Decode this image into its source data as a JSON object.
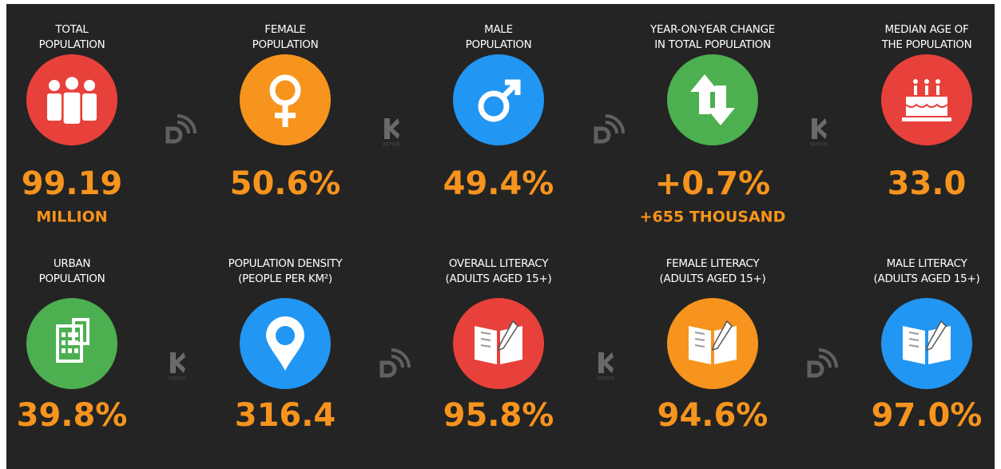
{
  "tiles": [
    {
      "label": [
        "TOTAL",
        "POPULATION"
      ],
      "value": "99.19",
      "sub": "MILLION",
      "color": "#e8403a"
    },
    {
      "label": [
        "FEMALE",
        "POPULATION"
      ],
      "value": "50.6%",
      "color": "#f7941d"
    },
    {
      "label": [
        "MALE",
        "POPULATION"
      ],
      "value": "49.4%",
      "color": "#2196f3"
    },
    {
      "label": [
        "YEAR-ON-YEAR CHANGE",
        "IN TOTAL POPULATION"
      ],
      "value": "+0.7%",
      "sub": "+655 THOUSAND",
      "color": "#4caf50"
    },
    {
      "label": [
        "MEDIAN AGE OF",
        "THE POPULATION"
      ],
      "value": "33.0",
      "color": "#e8403a"
    },
    {
      "label": [
        "URBAN",
        "POPULATION"
      ],
      "value": "39.8%",
      "color": "#4caf50"
    },
    {
      "label": [
        "POPULATION DENSITY",
        "(PEOPLE PER KM²)"
      ],
      "value": "316.4",
      "color": "#2196f3"
    },
    {
      "label": [
        "OVERALL LITERACY",
        "(ADULTS AGED 15+)"
      ],
      "value": "95.8%",
      "color": "#e8403a"
    },
    {
      "label": [
        "FEMALE LITERACY",
        "(ADULTS AGED 15+)"
      ],
      "value": "94.6%",
      "color": "#f7941d"
    },
    {
      "label": [
        "MALE LITERACY",
        "(ADULTS AGED 15+)"
      ],
      "value": "97.0%",
      "color": "#2196f3"
    }
  ],
  "watermark_text": "KEPIOS"
}
